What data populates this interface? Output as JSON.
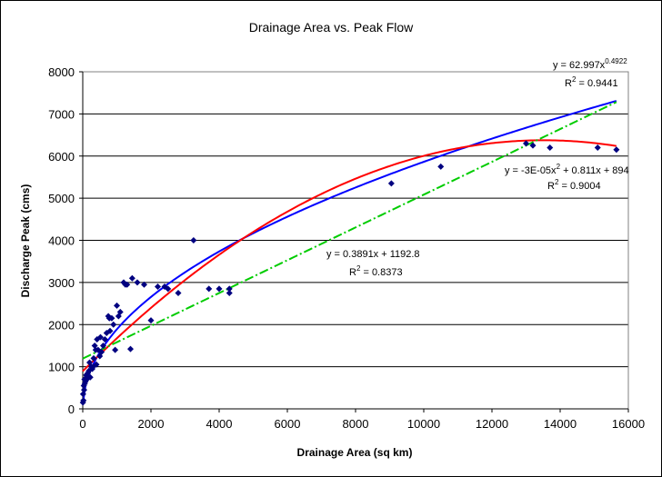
{
  "chart_data": {
    "type": "scatter",
    "title": "Drainage Area vs. Peak Flow",
    "xlabel": "Drainage Area (sq km)",
    "ylabel": "Discharge Peak (cms)",
    "xlim": [
      0,
      16000
    ],
    "ylim": [
      0,
      8000
    ],
    "x_ticks": [
      "0",
      "2000",
      "4000",
      "6000",
      "8000",
      "10000",
      "12000",
      "14000",
      "16000"
    ],
    "y_ticks": [
      "0",
      "1000",
      "2000",
      "3000",
      "4000",
      "5000",
      "6000",
      "7000",
      "8000"
    ],
    "grid": "horizontal",
    "legend": "none",
    "series": [
      {
        "kind": "points",
        "color": "#000080",
        "marker": "diamond",
        "x": [
          5,
          10,
          20,
          30,
          40,
          50,
          60,
          80,
          100,
          120,
          150,
          180,
          200,
          220,
          250,
          280,
          300,
          320,
          350,
          380,
          400,
          420,
          450,
          500,
          520,
          550,
          600,
          650,
          700,
          750,
          780,
          800,
          850,
          900,
          950,
          1000,
          1050,
          1100,
          1200,
          1250,
          1300,
          1400,
          1450,
          1600,
          1800,
          2000,
          2200,
          2400,
          2500,
          2800,
          3250,
          3700,
          4000,
          4300,
          4300,
          9050,
          10500,
          13000,
          13200,
          13700,
          15100,
          15650
        ],
        "y": [
          150,
          350,
          200,
          550,
          450,
          700,
          600,
          650,
          800,
          700,
          850,
          900,
          1100,
          750,
          1000,
          950,
          1000,
          1200,
          1500,
          1400,
          1050,
          1650,
          1400,
          1250,
          1700,
          1350,
          1500,
          1650,
          1800,
          2200,
          2150,
          1850,
          2150,
          2000,
          1400,
          2450,
          2200,
          2300,
          3000,
          2950,
          2950,
          1420,
          3100,
          3000,
          2950,
          2100,
          2900,
          2900,
          2850,
          2750,
          4000,
          2850,
          2850,
          2750,
          2850,
          5350,
          5750,
          6300,
          6250,
          6200,
          6200,
          6150
        ]
      },
      {
        "kind": "trendline",
        "fit": "power",
        "color": "#0000ff",
        "coefficients": {
          "a": 62.997,
          "b": 0.4922
        },
        "equation": "y = 62.997x",
        "exponent": "0.4922",
        "r2_label": "R",
        "r2_value": " = 0.9441"
      },
      {
        "kind": "trendline",
        "fit": "polynomial",
        "color": "#ff0000",
        "coefficients": {
          "a": -3e-05,
          "b": 0.811,
          "c": 894
        },
        "equation_pre": "y = -3E-05x",
        "equation_post": " + 0.811x + 894",
        "r2_label": "R",
        "r2_value": " = 0.9004"
      },
      {
        "kind": "trendline",
        "fit": "linear",
        "color": "#00cc00",
        "coefficients": {
          "m": 0.3891,
          "b": 1192.8
        },
        "equation": "y = 0.3891x + 1192.8",
        "r2_label": "R",
        "r2_value": " = 0.8373"
      }
    ]
  }
}
